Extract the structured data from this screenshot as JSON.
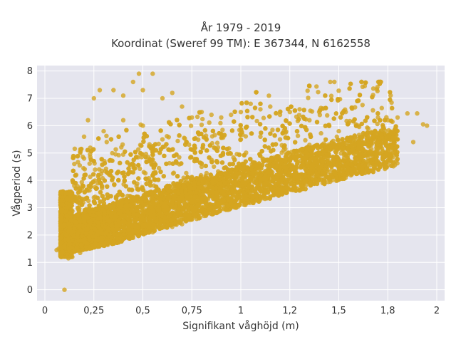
{
  "chart_data": {
    "type": "scatter",
    "title_line1": "År 1979 - 2019",
    "title_line2": "Koordinat (Sweref 99 TM): E 367344, N 6162558",
    "xlabel": "Signifikant våghöjd (m)",
    "ylabel": "Vågperiod (s)",
    "xlim": [
      -0.04,
      2.04
    ],
    "ylim": [
      -0.4,
      8.2
    ],
    "xticks": [
      0,
      0.25,
      0.5,
      0.75,
      1,
      1.25,
      1.5,
      1.75,
      2
    ],
    "xtick_labels": [
      "0",
      "0,25",
      "0,5",
      "0,75",
      "1",
      "1,2",
      "1,5",
      "1,8",
      "2"
    ],
    "yticks": [
      0,
      1,
      2,
      3,
      4,
      5,
      6,
      7,
      8
    ],
    "ytick_labels": [
      "0",
      "1",
      "2",
      "3",
      "4",
      "5",
      "6",
      "7",
      "8"
    ],
    "grid": true,
    "background": "#e5e5ee",
    "marker_color": "#d4a520",
    "points": [
      [
        0.06,
        1.45
      ],
      [
        0.07,
        1.5
      ],
      [
        0.08,
        1.7
      ],
      [
        0.09,
        1.4
      ],
      [
        0.1,
        0.0
      ],
      [
        0.1,
        1.6
      ],
      [
        0.11,
        2.0
      ],
      [
        0.12,
        2.4
      ],
      [
        0.13,
        2.8
      ],
      [
        0.14,
        3.2
      ],
      [
        0.15,
        3.8
      ],
      [
        0.16,
        4.2
      ],
      [
        0.18,
        5.0
      ],
      [
        0.2,
        5.6
      ],
      [
        0.22,
        6.2
      ],
      [
        0.25,
        7.0
      ],
      [
        0.28,
        7.3
      ],
      [
        0.35,
        7.3
      ],
      [
        0.4,
        7.1
      ],
      [
        0.45,
        7.6
      ],
      [
        0.48,
        7.9
      ],
      [
        0.5,
        7.3
      ],
      [
        0.55,
        7.9
      ],
      [
        0.6,
        7.0
      ],
      [
        0.65,
        7.2
      ],
      [
        0.7,
        6.7
      ],
      [
        0.75,
        6.3
      ],
      [
        0.8,
        6.5
      ],
      [
        0.85,
        6.4
      ],
      [
        0.9,
        6.3
      ],
      [
        0.95,
        6.4
      ],
      [
        1.0,
        6.5
      ],
      [
        1.05,
        6.8
      ],
      [
        1.1,
        6.6
      ],
      [
        1.15,
        6.7
      ],
      [
        1.2,
        6.4
      ],
      [
        1.25,
        6.5
      ],
      [
        1.3,
        6.6
      ],
      [
        1.35,
        6.2
      ],
      [
        1.4,
        6.5
      ],
      [
        1.45,
        6.0
      ],
      [
        1.5,
        5.8
      ],
      [
        1.55,
        6.1
      ],
      [
        1.6,
        6.0
      ],
      [
        1.65,
        5.9
      ],
      [
        1.7,
        6.3
      ],
      [
        1.75,
        6.2
      ],
      [
        1.8,
        6.3
      ],
      [
        1.85,
        6.45
      ],
      [
        1.9,
        6.45
      ],
      [
        1.93,
        6.05
      ],
      [
        1.95,
        6.0
      ],
      [
        1.72,
        5.6
      ],
      [
        1.8,
        5.5
      ],
      [
        1.88,
        5.4
      ],
      [
        1.6,
        5.3
      ],
      [
        1.55,
        5.0
      ],
      [
        1.45,
        4.6
      ],
      [
        1.4,
        4.4
      ],
      [
        1.3,
        4.2
      ],
      [
        1.25,
        4.0
      ],
      [
        1.15,
        3.8
      ],
      [
        1.05,
        3.5
      ],
      [
        0.95,
        3.3
      ],
      [
        0.85,
        3.0
      ],
      [
        0.75,
        2.6
      ],
      [
        0.65,
        2.3
      ],
      [
        0.55,
        2.1
      ],
      [
        0.45,
        1.9
      ],
      [
        0.35,
        1.75
      ],
      [
        0.25,
        1.55
      ],
      [
        0.18,
        1.35
      ],
      [
        0.14,
        1.2
      ],
      [
        0.12,
        1.15
      ],
      [
        0.7,
        2.4
      ],
      [
        0.72,
        2.6
      ],
      [
        0.68,
        3.8
      ],
      [
        0.92,
        3.9
      ],
      [
        1.0,
        5.5
      ],
      [
        1.1,
        5.6
      ],
      [
        1.2,
        5.5
      ],
      [
        1.35,
        5.3
      ],
      [
        1.05,
        4.0
      ],
      [
        0.8,
        4.5
      ],
      [
        0.6,
        5.5
      ],
      [
        0.5,
        6.0
      ],
      [
        0.4,
        6.2
      ],
      [
        0.3,
        5.8
      ],
      [
        0.2,
        4.8
      ],
      [
        0.15,
        4.6
      ]
    ]
  }
}
